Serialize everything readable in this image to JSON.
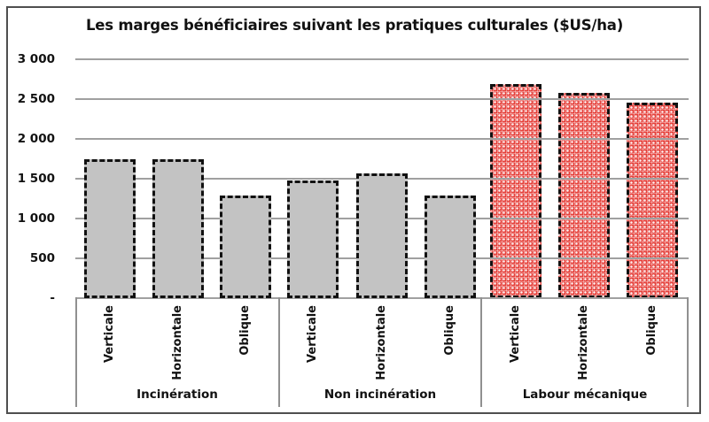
{
  "chart_data": {
    "type": "bar",
    "title": "Les marges bénéficiaires suivant les pratiques culturales ($US/ha)",
    "categories": [
      "Verticale",
      "Horizontale",
      "Oblique"
    ],
    "groups": [
      {
        "label": "Incinération",
        "fill": "gray",
        "values": [
          1740,
          1740,
          1290
        ]
      },
      {
        "label": "Non incinération",
        "fill": "gray",
        "values": [
          1480,
          1570,
          1290
        ]
      },
      {
        "label": "Labour mécanique",
        "fill": "red",
        "values": [
          2690,
          2580,
          2450
        ]
      }
    ],
    "y_axis": {
      "tick_labels": [
        "3 000",
        "2 500",
        "2 000",
        "1 500",
        "1 000",
        "500",
        "-"
      ],
      "tick_values": [
        3000,
        2500,
        2000,
        1500,
        1000,
        500,
        0
      ],
      "range": [
        0,
        3000
      ],
      "grid": true
    },
    "legend": "none",
    "colors": {
      "gray_bar_fill": "#c3c3c3",
      "red_bar_fill": "#e5413b",
      "bar_border": "#111111",
      "gridline": "#a0a0a0",
      "category_table_border": "#909090",
      "frame_border": "#4f4f4f",
      "text": "#111111",
      "background": "#ffffff"
    }
  }
}
